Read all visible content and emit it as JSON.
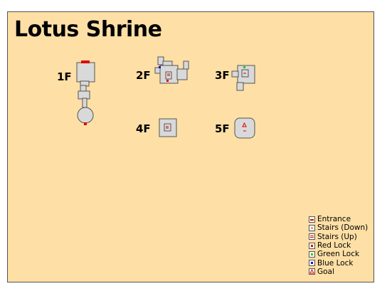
{
  "title": "Lotus Shrine",
  "floors": [
    {
      "id": "1F",
      "label": "1F"
    },
    {
      "id": "2F",
      "label": "2F"
    },
    {
      "id": "3F",
      "label": "3F"
    },
    {
      "id": "4F",
      "label": "4F"
    },
    {
      "id": "5F",
      "label": "5F"
    }
  ],
  "legend": [
    {
      "key": "entrance",
      "label": "Entrance",
      "color": "#e00000"
    },
    {
      "key": "stairs-down",
      "label": "Stairs (Down)",
      "color": "#e00000"
    },
    {
      "key": "stairs-up",
      "label": "Stairs (Up)",
      "color": "#e00000"
    },
    {
      "key": "red-lock",
      "label": "Red Lock",
      "color": "#e00000"
    },
    {
      "key": "green-lock",
      "label": "Green Lock",
      "color": "#1fcf1f"
    },
    {
      "key": "blue-lock",
      "label": "Blue Lock",
      "color": "#1010e0"
    },
    {
      "key": "goal",
      "label": "Goal",
      "color": "#e00000"
    }
  ],
  "colors": {
    "background": "#fedfa5",
    "room_fill": "#d9d9d9",
    "room_stroke": "#555555"
  }
}
